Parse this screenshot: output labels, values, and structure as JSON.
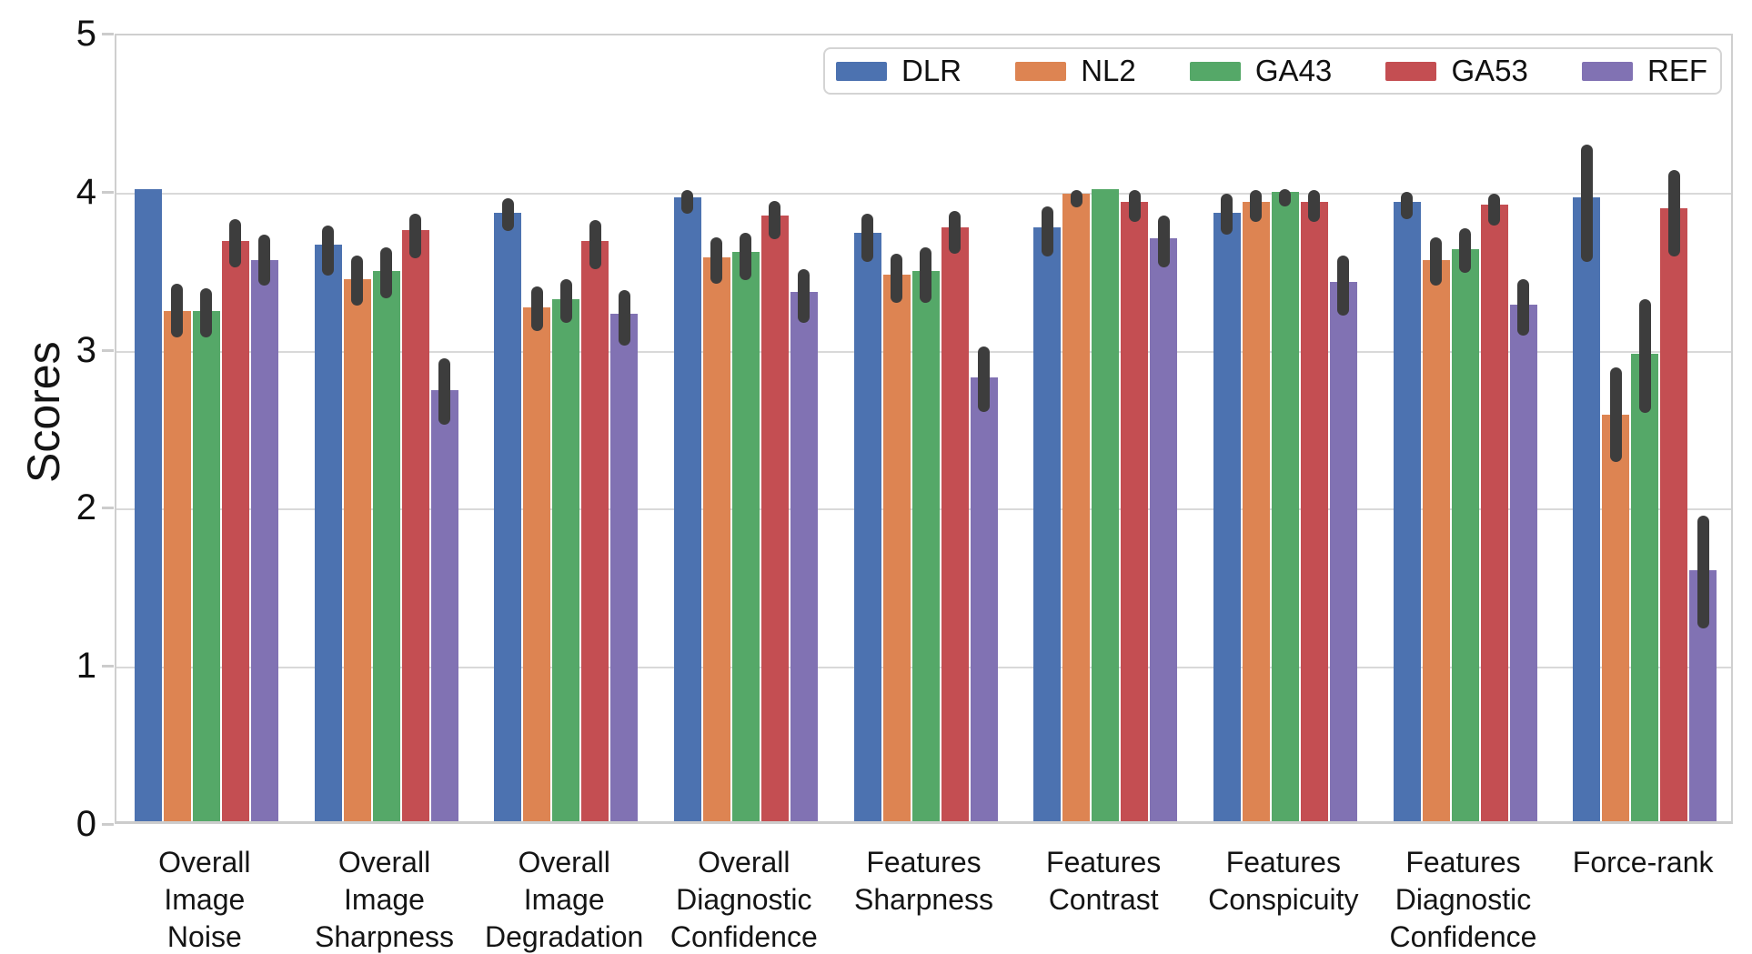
{
  "chart_data": {
    "type": "bar",
    "title": "",
    "xlabel": "",
    "ylabel": "Scores",
    "ylim": [
      0,
      5
    ],
    "yticks": [
      0,
      1,
      2,
      3,
      4,
      5
    ],
    "grid": true,
    "legend_position": "top-right",
    "error_bar_color": "#3d3d3d",
    "grid_color": "#d9d9d9",
    "spine_color": "#cccccc",
    "categories": [
      "Overall\nImage\nNoise",
      "Overall\nImage\nSharpness",
      "Overall\nImage\nDegradation",
      "Overall\nDiagnostic\nConfidence",
      "Features\nSharpness",
      "Features\nContrast",
      "Features\nConspicuity",
      "Features\nDiagnostic\nConfidence",
      "Force-rank"
    ],
    "series": [
      {
        "name": "DLR",
        "color": "#4C72B0",
        "values": [
          4.0,
          3.65,
          3.85,
          3.95,
          3.72,
          3.76,
          3.85,
          3.92,
          3.95
        ],
        "err_low": [
          4.0,
          3.48,
          3.76,
          3.87,
          3.57,
          3.6,
          3.74,
          3.84,
          3.57
        ],
        "err_high": [
          4.0,
          3.8,
          3.97,
          4.02,
          3.87,
          3.92,
          4.0,
          4.01,
          4.31
        ]
      },
      {
        "name": "NL2",
        "color": "#DD8452",
        "values": [
          3.23,
          3.43,
          3.25,
          3.57,
          3.46,
          3.97,
          3.92,
          3.55,
          2.57
        ],
        "err_low": [
          3.09,
          3.29,
          3.13,
          3.43,
          3.31,
          3.91,
          3.82,
          3.42,
          2.3
        ],
        "err_high": [
          3.43,
          3.61,
          3.41,
          3.72,
          3.62,
          4.02,
          4.02,
          3.72,
          2.9
        ]
      },
      {
        "name": "GA43",
        "color": "#55A868",
        "values": [
          3.23,
          3.48,
          3.3,
          3.6,
          3.48,
          4.0,
          3.98,
          3.62,
          2.96
        ],
        "err_low": [
          3.09,
          3.34,
          3.18,
          3.45,
          3.31,
          4.0,
          3.92,
          3.5,
          2.61
        ],
        "err_high": [
          3.4,
          3.66,
          3.46,
          3.75,
          3.66,
          4.0,
          4.03,
          3.78,
          3.33
        ]
      },
      {
        "name": "GA53",
        "color": "#C44E52",
        "values": [
          3.67,
          3.74,
          3.67,
          3.83,
          3.76,
          3.92,
          3.92,
          3.9,
          3.88
        ],
        "err_low": [
          3.53,
          3.59,
          3.52,
          3.71,
          3.62,
          3.82,
          3.82,
          3.8,
          3.6
        ],
        "err_high": [
          3.84,
          3.87,
          3.83,
          3.95,
          3.89,
          4.02,
          4.02,
          4.0,
          4.15
        ]
      },
      {
        "name": "REF",
        "color": "#8172B3",
        "values": [
          3.55,
          2.73,
          3.21,
          3.35,
          2.81,
          3.69,
          3.41,
          3.27,
          1.59
        ],
        "err_low": [
          3.42,
          2.54,
          3.04,
          3.18,
          2.62,
          3.53,
          3.23,
          3.1,
          1.25
        ],
        "err_high": [
          3.74,
          2.96,
          3.39,
          3.52,
          3.03,
          3.86,
          3.61,
          3.46,
          1.96
        ]
      }
    ]
  }
}
